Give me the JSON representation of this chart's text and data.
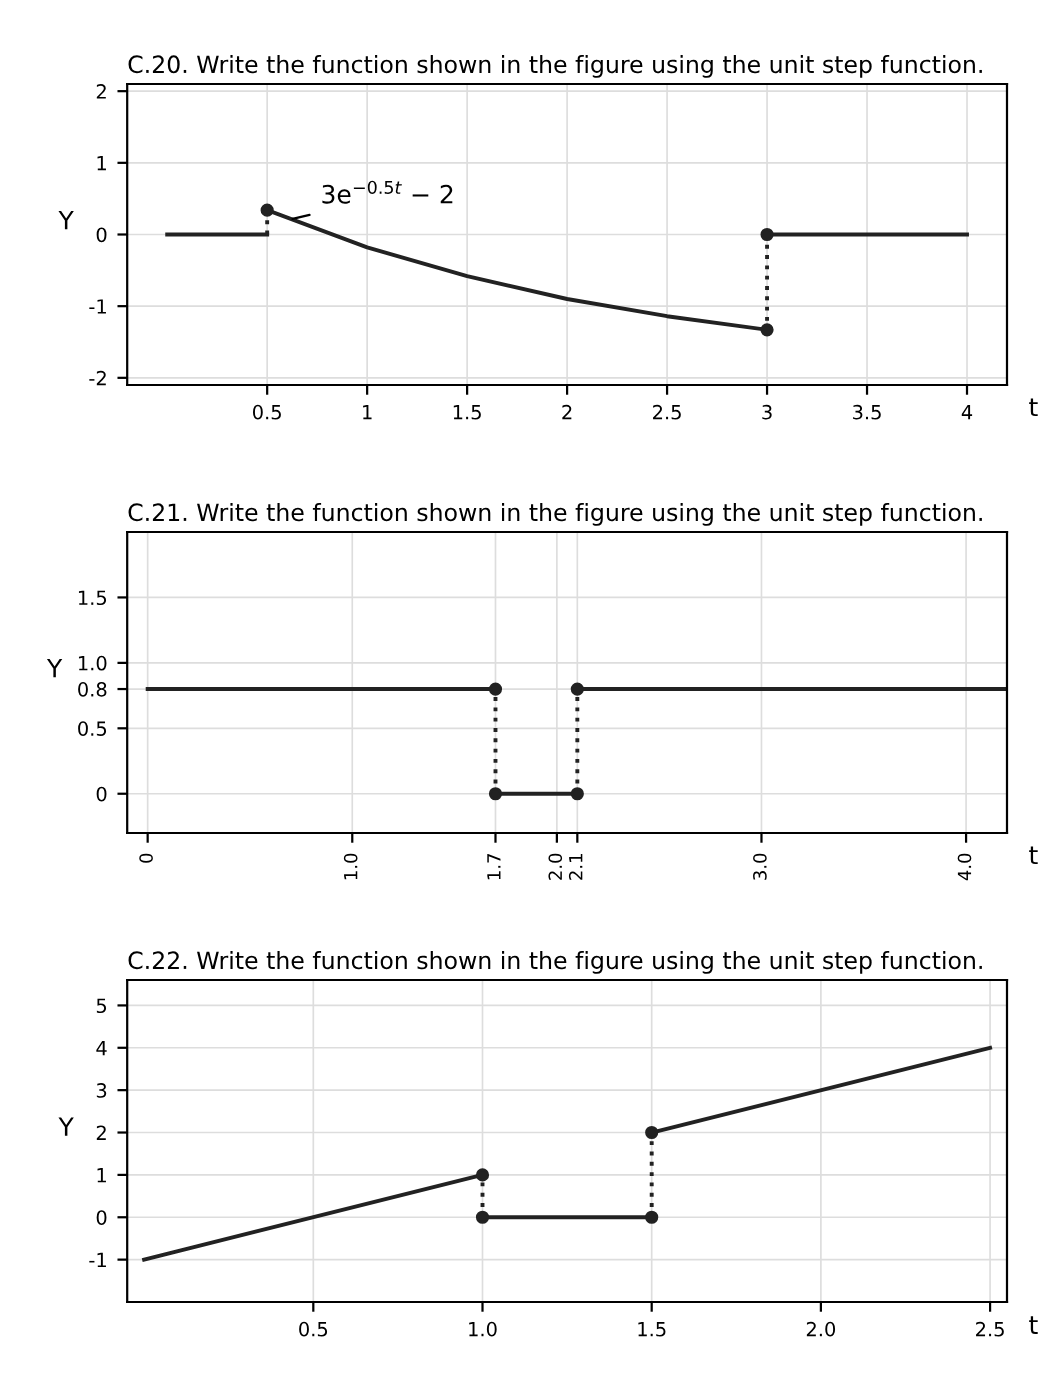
{
  "chart_data": [
    {
      "type": "line",
      "title": "C.20. Write the function shown in the figure using the unit step function.",
      "xlabel": "t",
      "ylabel": "Y",
      "grid": true,
      "xlim": [
        -0.2,
        4.2
      ],
      "ylim": [
        -2.1,
        2.1
      ],
      "xticks": [
        {
          "value": 0.5,
          "label": "0.5"
        },
        1,
        1.5,
        2,
        2.5,
        3,
        3.5,
        4
      ],
      "yticks": [
        -2,
        -1,
        0,
        1,
        2
      ],
      "annotations": [
        {
          "text": "3e$^{−0.5t}$ − 2",
          "x": 0.6,
          "y": 0.2
        }
      ],
      "series": [
        {
          "color": "#222222",
          "x": [
            0,
            0.5
          ],
          "values": [
            0,
            0
          ]
        },
        {
          "color": "#222222",
          "x": [
            0.5,
            1,
            1.5,
            2,
            2.5,
            3
          ],
          "values": [
            0.34,
            -0.18,
            -0.58,
            -0.9,
            -1.14,
            -1.33
          ]
        },
        {
          "color": "#222222",
          "x": [
            3,
            4
          ],
          "values": [
            0,
            0
          ]
        },
        {
          "color": "#222222",
          "line_style": "dotted",
          "x": [
            0.5,
            0.5
          ],
          "values": [
            0,
            0.34
          ]
        },
        {
          "color": "#222222",
          "line_style": "dotted",
          "x": [
            3,
            3
          ],
          "values": [
            0,
            -1.33
          ]
        },
        {
          "type": "scatter",
          "color": "#222222",
          "marker": "circle",
          "x": [
            0.5,
            3,
            3
          ],
          "values": [
            0.34,
            -1.33,
            0
          ]
        }
      ]
    },
    {
      "type": "line",
      "title": "C.21. Write the function shown in the figure using the unit step function.",
      "xlabel": "t",
      "ylabel": "Y",
      "grid": true,
      "xlim": [
        -0.1,
        4.2
      ],
      "ylim": [
        -0.3,
        2.0
      ],
      "xticks": [
        0,
        {
          "value": 1,
          "label": "1.0"
        },
        1.7,
        {
          "value": 2,
          "label": "2.0"
        },
        2.1,
        {
          "value": 3,
          "label": "3.0"
        },
        {
          "value": 4,
          "label": "4.0"
        }
      ],
      "yticks": [
        0,
        0.5,
        0.8,
        {
          "value": 1,
          "label": "1.0"
        },
        1.5
      ],
      "series": [
        {
          "color": "#222222",
          "x": [
            0,
            1.7
          ],
          "values": [
            0.8,
            0.8
          ]
        },
        {
          "color": "#222222",
          "x": [
            1.7,
            2.1
          ],
          "values": [
            0,
            0
          ]
        },
        {
          "color": "#222222",
          "x": [
            2.1,
            4.2
          ],
          "values": [
            0.8,
            0.8
          ]
        },
        {
          "color": "#222222",
          "line_style": "dotted",
          "x": [
            1.7,
            1.7
          ],
          "values": [
            0,
            0.8
          ]
        },
        {
          "color": "#222222",
          "line_style": "dotted",
          "x": [
            2.1,
            2.1
          ],
          "values": [
            0,
            0.8
          ]
        },
        {
          "type": "scatter",
          "color": "#222222",
          "marker": "circle",
          "x": [
            1.7,
            1.7,
            2.1,
            2.1
          ],
          "values": [
            0.8,
            0,
            0,
            0.8
          ]
        }
      ]
    },
    {
      "type": "line",
      "title": "C.22. Write the function shown in the figure using the unit step function.",
      "xlabel": "t",
      "ylabel": "Y",
      "grid": true,
      "xlim": [
        -0.05,
        2.55
      ],
      "ylim": [
        -2,
        5.6
      ],
      "xticks": [
        0.5,
        {
          "value": 1,
          "label": "1.0"
        },
        1.5,
        {
          "value": 2,
          "label": "2.0"
        },
        2.5
      ],
      "yticks": [
        -1,
        0,
        1,
        2,
        3,
        4,
        5
      ],
      "series": [
        {
          "color": "#222222",
          "x": [
            0,
            1
          ],
          "values": [
            -1,
            1
          ]
        },
        {
          "color": "#222222",
          "x": [
            1,
            1.5
          ],
          "values": [
            0,
            0
          ]
        },
        {
          "color": "#222222",
          "x": [
            1.5,
            2.5
          ],
          "values": [
            2,
            4
          ]
        },
        {
          "color": "#222222",
          "line_style": "dotted",
          "x": [
            1,
            1
          ],
          "values": [
            0,
            1
          ]
        },
        {
          "color": "#222222",
          "line_style": "dotted",
          "x": [
            1.5,
            1.5
          ],
          "values": [
            0,
            2
          ]
        },
        {
          "type": "scatter",
          "color": "#222222",
          "marker": "circle",
          "x": [
            1,
            1,
            1.5,
            1.5
          ],
          "values": [
            1,
            0,
            0,
            2
          ]
        }
      ]
    }
  ]
}
